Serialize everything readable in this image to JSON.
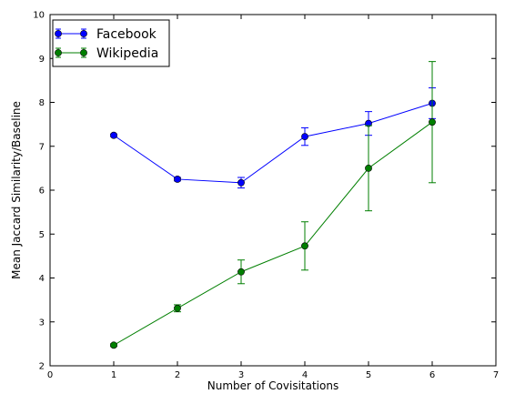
{
  "chart_data": {
    "type": "line",
    "title": "",
    "xlabel": "Number of Covisitations",
    "ylabel": "Mean Jaccard Similarity/Baseline",
    "xlim": [
      0,
      7
    ],
    "ylim": [
      2,
      10
    ],
    "xticks": [
      0,
      1,
      2,
      3,
      4,
      5,
      6,
      7
    ],
    "yticks": [
      2,
      3,
      4,
      5,
      6,
      7,
      8,
      9,
      10
    ],
    "grid": false,
    "legend_position": "top-left",
    "series": [
      {
        "name": "Facebook",
        "color": "#0000ff",
        "marker": "circle",
        "x": [
          1,
          2,
          3,
          4,
          5,
          6
        ],
        "y": [
          7.25,
          6.25,
          6.17,
          7.22,
          7.52,
          7.98
        ],
        "yerr": [
          0.03,
          0.04,
          0.12,
          0.2,
          0.27,
          0.35
        ]
      },
      {
        "name": "Wikipedia",
        "color": "#007f00",
        "marker": "circle",
        "x": [
          1,
          2,
          3,
          4,
          5,
          6
        ],
        "y": [
          2.47,
          3.31,
          4.14,
          4.73,
          6.5,
          7.55
        ],
        "yerr": [
          0.03,
          0.08,
          0.27,
          0.55,
          0.97,
          1.38
        ]
      }
    ]
  }
}
